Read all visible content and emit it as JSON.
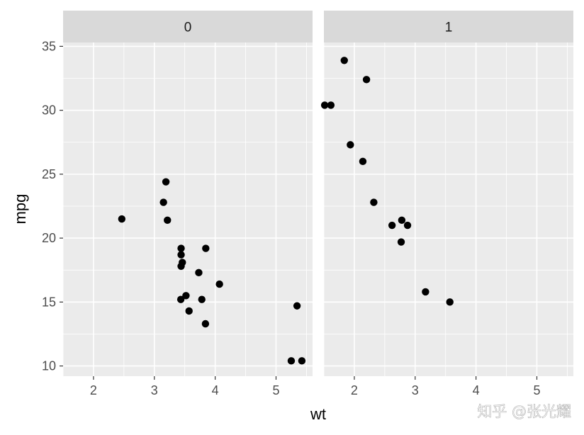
{
  "chart_data": {
    "type": "scatter",
    "xlabel": "wt",
    "ylabel": "mpg",
    "xlim": [
      1.5,
      5.6
    ],
    "ylim": [
      9.2,
      35.3
    ],
    "x_ticks": [
      2,
      3,
      4,
      5
    ],
    "y_ticks": [
      10,
      15,
      20,
      25,
      30,
      35
    ],
    "grid": true,
    "point_color": "#000000",
    "panel_background": "#EBEBEB",
    "strip_background": "#D9D9D9",
    "facets": [
      {
        "label": "0",
        "points": [
          {
            "x": 2.465,
            "y": 21.5
          },
          {
            "x": 3.19,
            "y": 24.4
          },
          {
            "x": 3.15,
            "y": 22.8
          },
          {
            "x": 3.215,
            "y": 21.4
          },
          {
            "x": 3.44,
            "y": 19.2
          },
          {
            "x": 3.44,
            "y": 18.7
          },
          {
            "x": 3.46,
            "y": 18.1
          },
          {
            "x": 3.44,
            "y": 17.8
          },
          {
            "x": 3.845,
            "y": 19.2
          },
          {
            "x": 3.73,
            "y": 17.3
          },
          {
            "x": 4.07,
            "y": 16.4
          },
          {
            "x": 3.52,
            "y": 15.5
          },
          {
            "x": 3.435,
            "y": 15.2
          },
          {
            "x": 3.78,
            "y": 15.2
          },
          {
            "x": 3.57,
            "y": 14.3
          },
          {
            "x": 3.84,
            "y": 13.3
          },
          {
            "x": 5.345,
            "y": 14.7
          },
          {
            "x": 5.25,
            "y": 10.4
          },
          {
            "x": 5.424,
            "y": 10.4
          }
        ]
      },
      {
        "label": "1",
        "points": [
          {
            "x": 1.835,
            "y": 33.9
          },
          {
            "x": 2.2,
            "y": 32.4
          },
          {
            "x": 1.513,
            "y": 30.4
          },
          {
            "x": 1.615,
            "y": 30.4
          },
          {
            "x": 1.935,
            "y": 27.3
          },
          {
            "x": 2.14,
            "y": 26.0
          },
          {
            "x": 2.32,
            "y": 22.8
          },
          {
            "x": 2.62,
            "y": 21.0
          },
          {
            "x": 2.78,
            "y": 21.4
          },
          {
            "x": 2.875,
            "y": 21.0
          },
          {
            "x": 2.77,
            "y": 19.7
          },
          {
            "x": 3.17,
            "y": 15.8
          },
          {
            "x": 3.57,
            "y": 15.0
          }
        ]
      }
    ]
  },
  "watermark": {
    "text": "知乎 @张光耀"
  }
}
